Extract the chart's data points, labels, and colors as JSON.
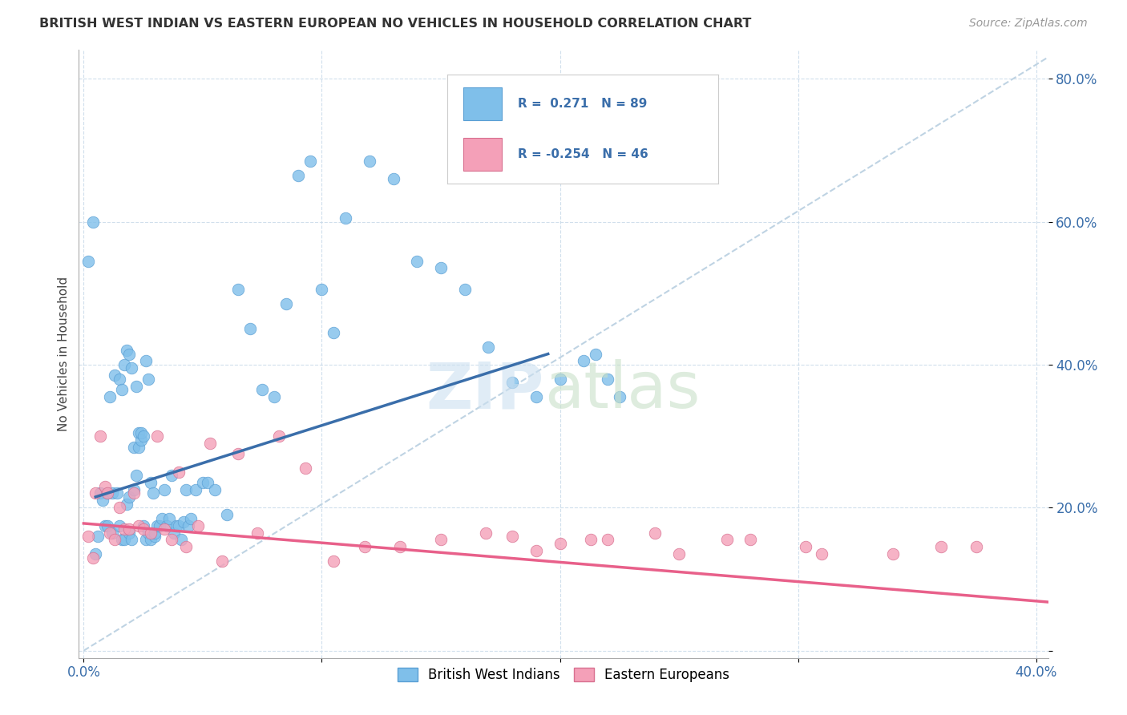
{
  "title": "BRITISH WEST INDIAN VS EASTERN EUROPEAN NO VEHICLES IN HOUSEHOLD CORRELATION CHART",
  "source": "Source: ZipAtlas.com",
  "ylabel": "No Vehicles in Household",
  "xlim": [
    -0.002,
    0.405
  ],
  "ylim": [
    -0.01,
    0.84
  ],
  "xtick_positions": [
    0.0,
    0.1,
    0.2,
    0.3,
    0.4
  ],
  "xtick_labels": [
    "0.0%",
    "",
    "",
    "",
    "40.0%"
  ],
  "ytick_positions": [
    0.0,
    0.2,
    0.4,
    0.6,
    0.8
  ],
  "ytick_labels": [
    "",
    "20.0%",
    "40.0%",
    "60.0%",
    "80.0%"
  ],
  "color_blue": "#7fbfea",
  "color_pink": "#f4a0b8",
  "color_blue_line": "#3a6eaa",
  "color_pink_line": "#e8608a",
  "color_blue_text": "#3a6eaa",
  "legend_r1": "R =  0.271   N = 89",
  "legend_r2": "R = -0.254   N = 46",
  "blue_scatter_x": [
    0.002,
    0.004,
    0.005,
    0.006,
    0.007,
    0.008,
    0.009,
    0.01,
    0.01,
    0.011,
    0.012,
    0.012,
    0.013,
    0.014,
    0.015,
    0.015,
    0.016,
    0.016,
    0.017,
    0.017,
    0.018,
    0.018,
    0.019,
    0.019,
    0.019,
    0.02,
    0.02,
    0.021,
    0.021,
    0.022,
    0.022,
    0.023,
    0.023,
    0.024,
    0.024,
    0.025,
    0.025,
    0.026,
    0.026,
    0.027,
    0.027,
    0.028,
    0.028,
    0.029,
    0.03,
    0.03,
    0.031,
    0.032,
    0.033,
    0.034,
    0.035,
    0.036,
    0.037,
    0.038,
    0.039,
    0.04,
    0.041,
    0.042,
    0.043,
    0.044,
    0.045,
    0.047,
    0.05,
    0.052,
    0.055,
    0.06,
    0.065,
    0.07,
    0.075,
    0.08,
    0.085,
    0.09,
    0.095,
    0.1,
    0.105,
    0.11,
    0.12,
    0.13,
    0.14,
    0.15,
    0.16,
    0.17,
    0.18,
    0.19,
    0.2,
    0.21,
    0.215,
    0.22,
    0.225
  ],
  "blue_scatter_y": [
    0.545,
    0.6,
    0.135,
    0.16,
    0.22,
    0.21,
    0.175,
    0.22,
    0.175,
    0.355,
    0.22,
    0.165,
    0.385,
    0.22,
    0.38,
    0.175,
    0.365,
    0.155,
    0.4,
    0.155,
    0.205,
    0.42,
    0.215,
    0.165,
    0.415,
    0.395,
    0.155,
    0.225,
    0.285,
    0.37,
    0.245,
    0.285,
    0.305,
    0.295,
    0.305,
    0.175,
    0.3,
    0.155,
    0.405,
    0.165,
    0.38,
    0.235,
    0.155,
    0.22,
    0.16,
    0.165,
    0.175,
    0.175,
    0.185,
    0.225,
    0.175,
    0.185,
    0.245,
    0.165,
    0.175,
    0.175,
    0.155,
    0.18,
    0.225,
    0.175,
    0.185,
    0.225,
    0.235,
    0.235,
    0.225,
    0.19,
    0.505,
    0.45,
    0.365,
    0.355,
    0.485,
    0.665,
    0.685,
    0.505,
    0.445,
    0.605,
    0.685,
    0.66,
    0.545,
    0.535,
    0.505,
    0.425,
    0.375,
    0.355,
    0.38,
    0.405,
    0.415,
    0.38,
    0.355
  ],
  "pink_scatter_x": [
    0.002,
    0.004,
    0.005,
    0.007,
    0.009,
    0.01,
    0.011,
    0.013,
    0.015,
    0.017,
    0.019,
    0.021,
    0.023,
    0.025,
    0.028,
    0.031,
    0.034,
    0.037,
    0.04,
    0.043,
    0.048,
    0.053,
    0.058,
    0.065,
    0.073,
    0.082,
    0.093,
    0.105,
    0.118,
    0.133,
    0.15,
    0.169,
    0.19,
    0.213,
    0.24,
    0.27,
    0.303,
    0.34,
    0.36,
    0.375,
    0.31,
    0.28,
    0.25,
    0.22,
    0.2,
    0.18
  ],
  "pink_scatter_y": [
    0.16,
    0.13,
    0.22,
    0.3,
    0.23,
    0.22,
    0.165,
    0.155,
    0.2,
    0.17,
    0.17,
    0.22,
    0.175,
    0.17,
    0.165,
    0.3,
    0.17,
    0.155,
    0.25,
    0.145,
    0.175,
    0.29,
    0.125,
    0.275,
    0.165,
    0.3,
    0.255,
    0.125,
    0.145,
    0.145,
    0.155,
    0.165,
    0.14,
    0.155,
    0.165,
    0.155,
    0.145,
    0.135,
    0.145,
    0.145,
    0.135,
    0.155,
    0.135,
    0.155,
    0.15,
    0.16
  ],
  "blue_trend_x": [
    0.005,
    0.195
  ],
  "blue_trend_y": [
    0.215,
    0.415
  ],
  "pink_trend_x": [
    0.0,
    0.405
  ],
  "pink_trend_y": [
    0.178,
    0.068
  ],
  "dash_line_x": [
    0.0,
    0.405
  ],
  "dash_line_y": [
    0.0,
    0.83
  ]
}
